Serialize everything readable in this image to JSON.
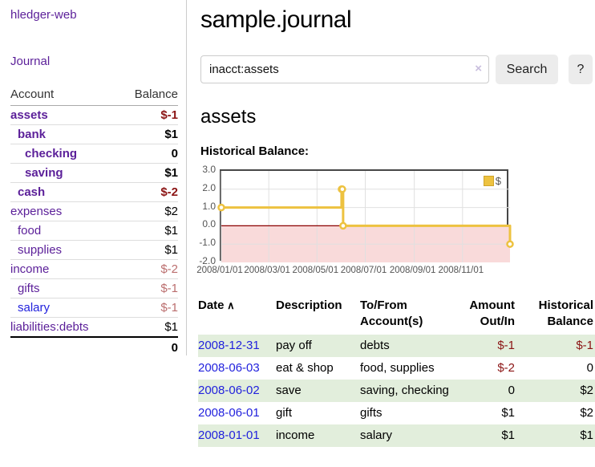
{
  "app": {
    "title": "hledger-web"
  },
  "sidebar": {
    "journal_label": "Journal",
    "table": {
      "header_account": "Account",
      "header_balance": "Balance",
      "accounts": [
        {
          "name": "assets",
          "indent": 0,
          "bold": true,
          "balance": "$-1",
          "balance_color": "negative",
          "link_color": "purple"
        },
        {
          "name": "bank",
          "indent": 1,
          "bold": true,
          "balance": "$1",
          "balance_color": "normal",
          "link_color": "purple"
        },
        {
          "name": "checking",
          "indent": 2,
          "bold": true,
          "balance": "0",
          "balance_color": "normal",
          "link_color": "purple"
        },
        {
          "name": "saving",
          "indent": 2,
          "bold": true,
          "balance": "$1",
          "balance_color": "normal",
          "link_color": "purple"
        },
        {
          "name": "cash",
          "indent": 1,
          "bold": true,
          "balance": "$-2",
          "balance_color": "negative",
          "link_color": "purple"
        },
        {
          "name": "expenses",
          "indent": 0,
          "bold": false,
          "balance": "$2",
          "balance_color": "normal",
          "link_color": "purple"
        },
        {
          "name": "food",
          "indent": 1,
          "bold": false,
          "balance": "$1",
          "balance_color": "normal",
          "link_color": "purple"
        },
        {
          "name": "supplies",
          "indent": 1,
          "bold": false,
          "balance": "$1",
          "balance_color": "normal",
          "link_color": "purple"
        },
        {
          "name": "income",
          "indent": 0,
          "bold": false,
          "balance": "$-2",
          "balance_color": "soft-negative",
          "link_color": "purple"
        },
        {
          "name": "gifts",
          "indent": 1,
          "bold": false,
          "balance": "$-1",
          "balance_color": "soft-negative",
          "link_color": "purple"
        },
        {
          "name": "salary",
          "indent": 1,
          "bold": false,
          "balance": "$-1",
          "balance_color": "soft-negative",
          "link_color": "blue"
        },
        {
          "name": "liabilities:debts",
          "indent": 0,
          "bold": false,
          "balance": "$1",
          "balance_color": "normal",
          "link_color": "purple"
        }
      ],
      "total": "0"
    }
  },
  "header": {
    "title": "sample.journal"
  },
  "search": {
    "value": "inacct:assets",
    "clear_icon": "×",
    "button_label": "Search",
    "help_label": "?"
  },
  "main": {
    "account_title": "assets",
    "chart_label": "Historical Balance:"
  },
  "chart_data": {
    "type": "line",
    "step": true,
    "legend": "$",
    "title": "Historical Balance of assets",
    "x": [
      "2008-01-01",
      "2008-06-01",
      "2008-06-02",
      "2008-06-03",
      "2008-12-31"
    ],
    "values": [
      1,
      2,
      2,
      0,
      -1
    ],
    "point_days": [
      0,
      152,
      153,
      154,
      365
    ],
    "x_range_days": 365,
    "x_ticks": [
      "2008/01/01",
      "2008/03/01",
      "2008/05/01",
      "2008/07/01",
      "2008/09/01",
      "2008/11/01"
    ],
    "x_tick_days": [
      0,
      60,
      121,
      182,
      244,
      305
    ],
    "y_ticks": [
      "3.0",
      "2.0",
      "1.0",
      "0.0",
      "-1.0",
      "-2.0"
    ],
    "ylim": [
      -2,
      3
    ],
    "grid": true,
    "legend_position": "top-right",
    "line_color": "#edc240",
    "marker_fill": "#ffffff",
    "grid_color": "#e0e0e0",
    "negative_fill": "#f9dada",
    "zero_line_color": "#8b0000"
  },
  "register": {
    "headers": [
      {
        "label": "Date",
        "align": "left",
        "sortable": true,
        "sort_icon": "∧"
      },
      {
        "label": "Description",
        "align": "left"
      },
      {
        "label": "To/From Account(s)",
        "align": "left"
      },
      {
        "label": "Amount Out/In",
        "align": "right"
      },
      {
        "label": "Historical Balance",
        "align": "right"
      }
    ],
    "rows": [
      {
        "date": "2008-12-31",
        "description": "pay off",
        "accounts": "debts",
        "amount": "$-1",
        "amount_neg": true,
        "balance": "$-1",
        "balance_neg": true,
        "shade": true
      },
      {
        "date": "2008-06-03",
        "description": "eat & shop",
        "accounts": "food, supplies",
        "amount": "$-2",
        "amount_neg": true,
        "balance": "0",
        "balance_neg": false,
        "shade": false
      },
      {
        "date": "2008-06-02",
        "description": "save",
        "accounts": "saving, checking",
        "amount": "0",
        "amount_neg": false,
        "balance": "$2",
        "balance_neg": false,
        "shade": true
      },
      {
        "date": "2008-06-01",
        "description": "gift",
        "accounts": "gifts",
        "amount": "$1",
        "amount_neg": false,
        "balance": "$2",
        "balance_neg": false,
        "shade": false
      },
      {
        "date": "2008-01-01",
        "description": "income",
        "accounts": "salary",
        "amount": "$1",
        "amount_neg": false,
        "balance": "$1",
        "balance_neg": false,
        "shade": true
      }
    ]
  },
  "colors": {
    "link_purple": "#5b1f99",
    "link_blue": "#2222dd",
    "negative": "#8b1414",
    "soft_negative": "#bb6e6e",
    "row_shade_green": "#e2eedc",
    "chart_line_gold": "#edc240"
  }
}
